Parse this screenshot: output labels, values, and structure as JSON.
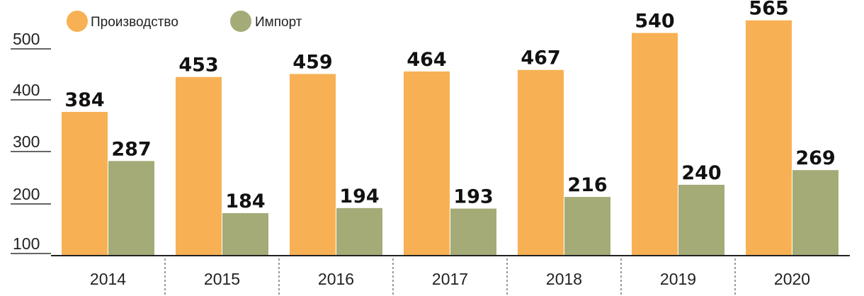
{
  "chart_data": {
    "type": "bar",
    "categories": [
      "2014",
      "2015",
      "2016",
      "2017",
      "2018",
      "2019",
      "2020"
    ],
    "series": [
      {
        "name": "Производство",
        "color": "#f7b154",
        "values": [
          384,
          453,
          459,
          464,
          467,
          540,
          565
        ]
      },
      {
        "name": "Импорт",
        "color": "#a4ab77",
        "values": [
          287,
          184,
          194,
          193,
          216,
          240,
          269
        ]
      }
    ],
    "y_ticks": [
      "100",
      "200",
      "300",
      "400",
      "500"
    ],
    "ylim": [
      100,
      600
    ],
    "grid": false,
    "legend_placement": "top-left"
  }
}
